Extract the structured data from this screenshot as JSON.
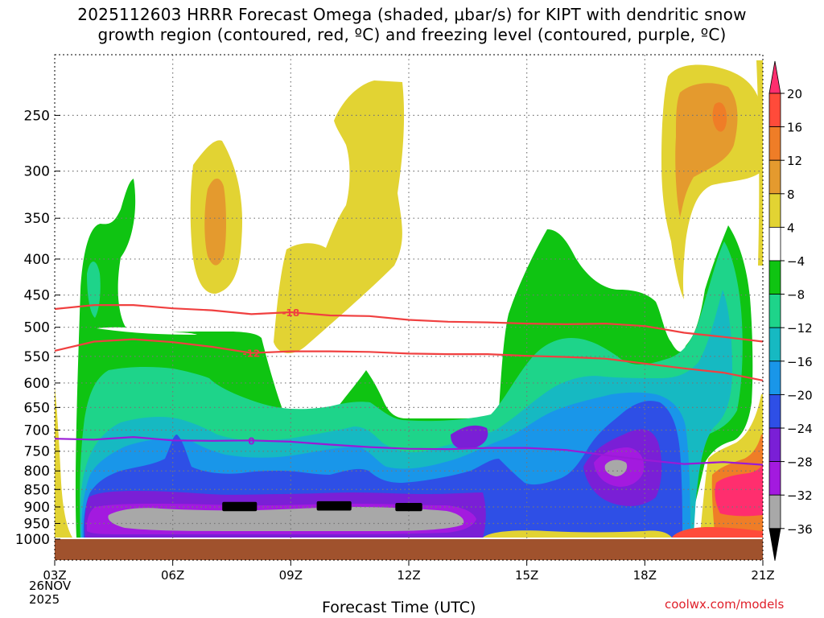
{
  "title": {
    "line1": "2025112603 HRRR Forecast Omega (shaded, μbar/s) for KIPT with dendritic snow",
    "line2": "growth region (contoured, red, ºC) and freezing level (contoured, purple, ºC)"
  },
  "xlabel": "Forecast Time (UTC)",
  "start_date": {
    "day": "26NOV",
    "year": "2025"
  },
  "credit": "coolwx.com/models",
  "chart_data": {
    "type": "heatmap",
    "x_ticks": [
      "03Z",
      "06Z",
      "09Z",
      "12Z",
      "15Z",
      "18Z",
      "21Z"
    ],
    "x_range": [
      3,
      21
    ],
    "y_ticks": [
      250,
      300,
      350,
      400,
      450,
      500,
      550,
      600,
      650,
      700,
      750,
      800,
      850,
      900,
      950,
      1000
    ],
    "y_range": [
      1000,
      200
    ],
    "y_scale": "log-pressure",
    "grid": true,
    "colorbar": {
      "labels": [
        "20",
        "16",
        "12",
        "8",
        "4",
        "−4",
        "−8",
        "−12",
        "−16",
        "−20",
        "−24",
        "−28",
        "−32",
        "−36"
      ],
      "colors": [
        "#ff2e6e",
        "#ff4b3a",
        "#ef7d27",
        "#e49a2e",
        "#e2d333",
        "#ffffff",
        "#0fc412",
        "#1ed48a",
        "#16b9c2",
        "#1996e9",
        "#2e4fe6",
        "#7a1fd6",
        "#a31adf",
        "#a8a8a8",
        "#000000"
      ],
      "units": "μbar/s"
    },
    "omega_regions": [
      {
        "value": -36,
        "color": "#000000",
        "points": [
          [
            7.3,
            890
          ],
          [
            8.1,
            890
          ],
          [
            8.1,
            908
          ],
          [
            7.3,
            908
          ]
        ]
      },
      {
        "value": -36,
        "color": "#000000",
        "points": [
          [
            9.7,
            888
          ],
          [
            10.5,
            888
          ],
          [
            10.5,
            906
          ],
          [
            9.7,
            906
          ]
        ]
      },
      {
        "value": -36,
        "color": "#000000",
        "points": [
          [
            11.7,
            893
          ],
          [
            12.3,
            893
          ],
          [
            12.3,
            908
          ],
          [
            11.7,
            908
          ]
        ]
      }
    ],
    "contours": [
      {
        "label": "-18",
        "color": "#f04040",
        "type": "dendritic",
        "points": [
          [
            3,
            471
          ],
          [
            4,
            465
          ],
          [
            5,
            465
          ],
          [
            6,
            470
          ],
          [
            7,
            473
          ],
          [
            8,
            479
          ],
          [
            9,
            476
          ],
          [
            10,
            481
          ],
          [
            11,
            482
          ],
          [
            12,
            488
          ],
          [
            13,
            491
          ],
          [
            14,
            492
          ],
          [
            15,
            494
          ],
          [
            16,
            495
          ],
          [
            17,
            494
          ],
          [
            18,
            498
          ],
          [
            19,
            509
          ],
          [
            20,
            516
          ],
          [
            21,
            524
          ]
        ]
      },
      {
        "label": "-12",
        "color": "#f04040",
        "type": "dendritic",
        "points": [
          [
            3,
            540
          ],
          [
            4,
            524
          ],
          [
            5,
            520
          ],
          [
            6,
            525
          ],
          [
            7,
            533
          ],
          [
            8,
            544
          ],
          [
            9,
            541
          ],
          [
            10,
            541
          ],
          [
            11,
            542
          ],
          [
            12,
            545
          ],
          [
            13,
            546
          ],
          [
            14,
            546
          ],
          [
            15,
            549
          ],
          [
            16,
            551
          ],
          [
            17,
            554
          ],
          [
            18,
            563
          ],
          [
            19,
            572
          ],
          [
            20,
            580
          ],
          [
            21,
            595
          ]
        ]
      },
      {
        "label": "0",
        "color": "#9a1ad6",
        "type": "freezing",
        "points": [
          [
            3,
            720
          ],
          [
            4,
            722
          ],
          [
            5,
            716
          ],
          [
            6,
            724
          ],
          [
            7,
            725
          ],
          [
            8,
            724
          ],
          [
            9,
            727
          ],
          [
            10,
            734
          ],
          [
            11,
            740
          ],
          [
            12,
            744
          ],
          [
            13,
            745
          ],
          [
            14,
            742
          ],
          [
            15,
            742
          ],
          [
            16,
            747
          ],
          [
            17,
            760
          ],
          [
            18,
            772
          ],
          [
            19,
            782
          ],
          [
            20,
            777
          ],
          [
            21,
            784
          ]
        ]
      }
    ]
  }
}
